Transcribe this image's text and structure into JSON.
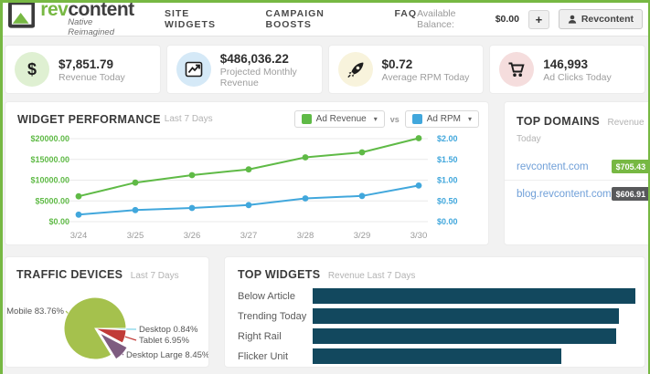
{
  "header": {
    "logo": {
      "brand_rev": "rev",
      "brand_content": "content",
      "tagline": "Native Reimagined"
    },
    "nav": [
      {
        "label": "SITE WIDGETS"
      },
      {
        "label": "CAMPAIGN BOOSTS"
      },
      {
        "label": "FAQ"
      }
    ],
    "balance_label": "Available Balance:",
    "balance_value": "$0.00",
    "add_funds_label": "+",
    "account_label": "Revcontent"
  },
  "colors": {
    "brand_green": "#77b843",
    "chart_green": "#5fba46",
    "chart_blue": "#41a7dc",
    "bar_teal": "#12485e",
    "link_blue": "#6f9fd8"
  },
  "stats": [
    {
      "value": "$7,851.79",
      "label": "Revenue Today",
      "icon": "dollar-icon",
      "circle_color": "#dff0d2"
    },
    {
      "value": "$486,036.22",
      "label": "Projected Monthly Revenue",
      "icon": "line-chart-icon",
      "circle_color": "#d5e9f7"
    },
    {
      "value": "$0.72",
      "label": "Average RPM Today",
      "icon": "rocket-icon",
      "circle_color": "#f8f3dc"
    },
    {
      "value": "146,993",
      "label": "Ad Clicks Today",
      "icon": "cart-icon",
      "circle_color": "#f5dddd"
    }
  ],
  "widget_performance": {
    "title": "WIDGET PERFORMANCE",
    "subtitle": "Last 7 Days",
    "vs_label": "vs",
    "legend": [
      {
        "label": "Ad Revenue",
        "color": "#5fba46"
      },
      {
        "label": "Ad RPM",
        "color": "#41a7dc"
      }
    ]
  },
  "top_domains": {
    "title": "TOP DOMAINS",
    "subtitle": "Revenue Today",
    "rows": [
      {
        "domain": "revcontent.com",
        "revenue": "$705.43",
        "badge_color": "#77b843"
      },
      {
        "domain": "blog.revcontent.com",
        "revenue": "$606.91",
        "badge_color": "#58595b"
      }
    ]
  },
  "traffic_devices": {
    "title": "TRAFFIC DEVICES",
    "subtitle": "Last 7 Days"
  },
  "top_widgets": {
    "title": "TOP WIDGETS",
    "subtitle": "Revenue Last 7 Days"
  },
  "chart_data": [
    {
      "name": "widget-performance",
      "type": "line",
      "x": [
        "3/24",
        "3/25",
        "3/26",
        "3/27",
        "3/28",
        "3/29",
        "3/30"
      ],
      "series": [
        {
          "name": "Ad Revenue",
          "axis": "left",
          "color": "#5fba46",
          "values": [
            6100,
            9400,
            11200,
            12600,
            15500,
            16700,
            20100
          ]
        },
        {
          "name": "Ad RPM",
          "axis": "right",
          "color": "#41a7dc",
          "values": [
            0.17,
            0.28,
            0.33,
            0.4,
            0.56,
            0.62,
            0.87
          ]
        }
      ],
      "left_axis": {
        "label": "Ad Revenue ($)",
        "min": 0,
        "max": 20000,
        "color": "#5fba46",
        "ticks": [
          "$0.00",
          "$5000.00",
          "$10000.00",
          "$15000.00",
          "$20000.00"
        ]
      },
      "right_axis": {
        "label": "Ad RPM ($)",
        "min": 0,
        "max": 2,
        "color": "#41a7dc",
        "ticks": [
          "$0.00",
          "$0.50",
          "$1.00",
          "$1.50",
          "$2.00"
        ]
      },
      "grid": true,
      "legend_position": "top-right"
    },
    {
      "name": "traffic-devices",
      "type": "pie",
      "title": "TRAFFIC DEVICES",
      "slices": [
        {
          "label": "Desktop",
          "pct": 0.84,
          "color": "#7fd4e8",
          "exploded": false
        },
        {
          "label": "Tablet",
          "pct": 6.95,
          "color": "#c13b38",
          "exploded": false
        },
        {
          "label": "Desktop Large",
          "pct": 8.45,
          "color": "#7e5c80",
          "exploded": true
        },
        {
          "label": "Mobile",
          "pct": 83.76,
          "color": "#a5c14d",
          "exploded": false
        }
      ]
    },
    {
      "name": "top-widgets",
      "type": "bar",
      "orientation": "horizontal",
      "title": "TOP WIDGETS",
      "categories": [
        "Below Article",
        "Trending Today",
        "Right Rail",
        "Flicker Unit"
      ],
      "values_pct_of_max": [
        100,
        95,
        94,
        77
      ],
      "color": "#12485e",
      "value_labels_shown": false
    }
  ]
}
